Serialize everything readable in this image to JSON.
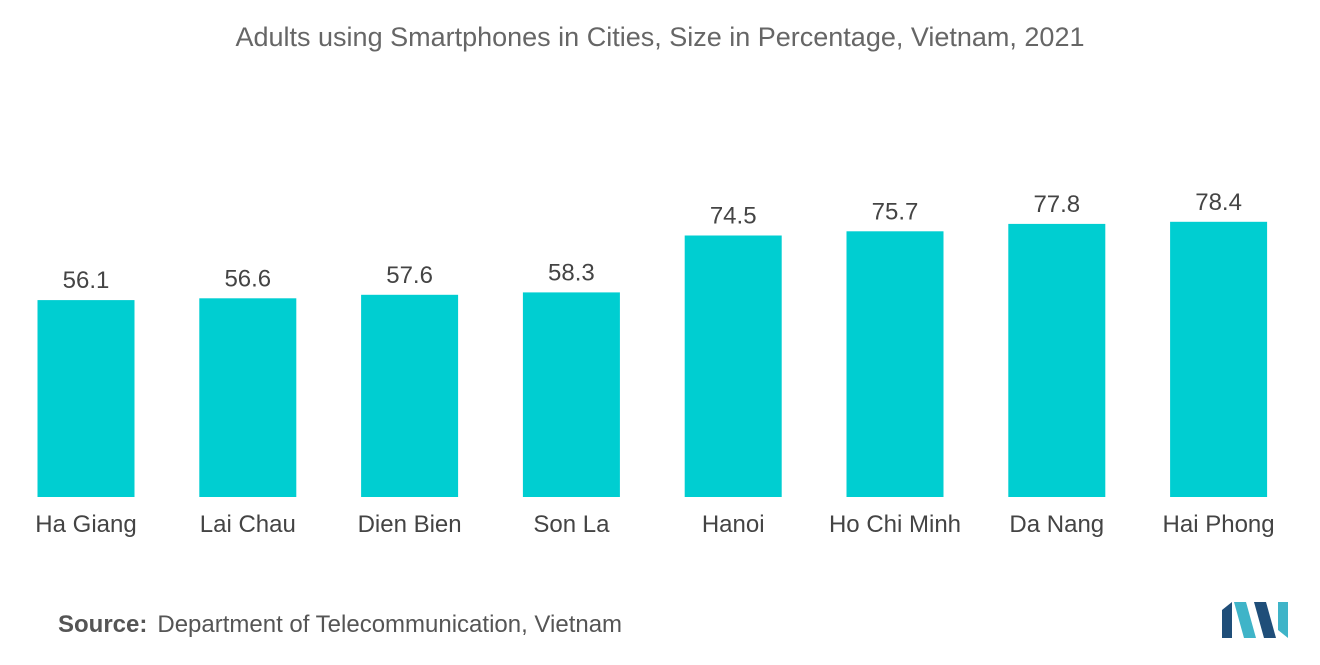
{
  "chart_data": {
    "type": "bar",
    "title": "Adults using Smartphones in Cities, Size in Percentage, Vietnam, 2021",
    "categories": [
      "Ha Giang",
      "Lai Chau",
      "Dien Bien",
      "Son La",
      "Hanoi",
      "Ho Chi Minh",
      "Da Nang",
      "Hai Phong"
    ],
    "values": [
      56.1,
      56.6,
      57.6,
      58.3,
      74.5,
      75.7,
      77.8,
      78.4
    ],
    "value_labels": [
      "56.1",
      "56.6",
      "57.6",
      "58.3",
      "74.5",
      "75.7",
      "77.8",
      "78.4"
    ],
    "xlabel": "",
    "ylabel": "",
    "ylim": [
      0,
      100
    ],
    "grid": false,
    "legend": "none",
    "bar_color": "#00CED1"
  },
  "source": {
    "label": "Source:",
    "text": "Department of Telecommunication, Vietnam"
  },
  "logo": {
    "icon": "mordor-intelligence-logo-icon",
    "colors": [
      "#1f4e79",
      "#3fb4c8"
    ]
  }
}
